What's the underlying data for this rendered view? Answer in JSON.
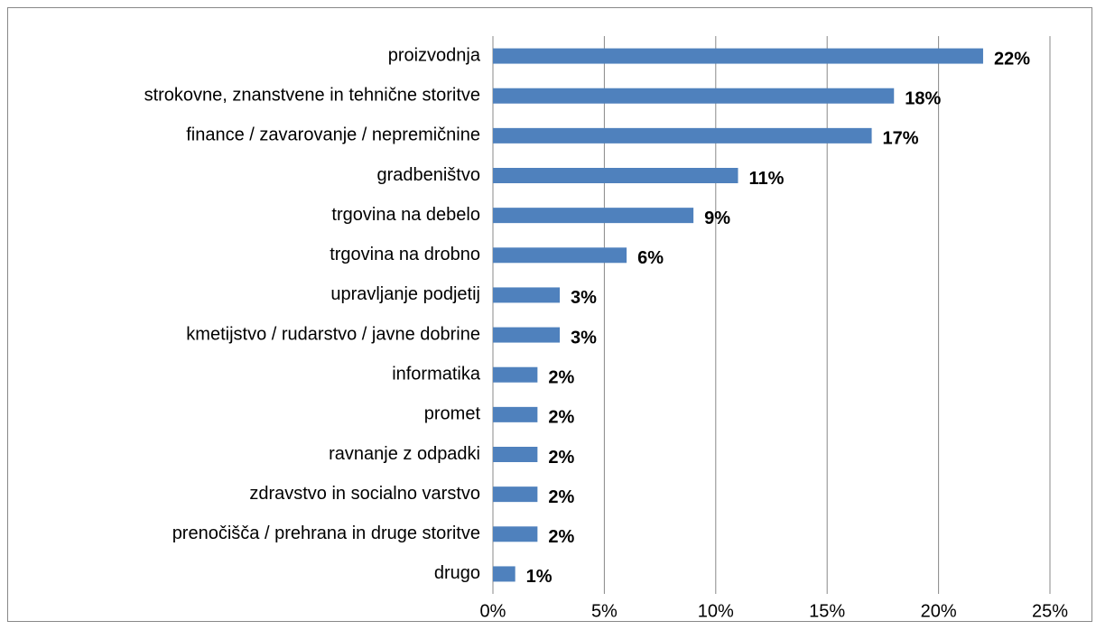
{
  "chart_data": {
    "type": "bar",
    "orientation": "horizontal",
    "categories": [
      "proizvodnja",
      "strokovne, znanstvene in tehnične storitve",
      "finance / zavarovanje / nepremičnine",
      "gradbeništvo",
      "trgovina na debelo",
      "trgovina na drobno",
      "upravljanje podjetij ",
      "kmetijstvo / rudarstvo / javne dobrine",
      "informatika",
      "promet",
      "ravnanje z odpadki",
      "zdravstvo in socialno varstvo ",
      "prenočišča / prehrana in druge storitve",
      "drugo"
    ],
    "values": [
      22,
      18,
      17,
      11,
      9,
      6,
      3,
      3,
      2,
      2,
      2,
      2,
      2,
      1
    ],
    "value_labels": [
      "22%",
      "18%",
      "17%",
      "11%",
      "9%",
      "6%",
      "3%",
      "3%",
      "2%",
      "2%",
      "2%",
      "2%",
      "2%",
      "1%"
    ],
    "color": "#4f81bd",
    "xlim": [
      0,
      25
    ],
    "xticks": [
      {
        "value": 0,
        "label": "0%"
      },
      {
        "value": 5,
        "label": "5%"
      },
      {
        "value": 10,
        "label": "10%"
      },
      {
        "value": 15,
        "label": "15%"
      },
      {
        "value": 20,
        "label": "20%"
      },
      {
        "value": 25,
        "label": "25%"
      }
    ],
    "grid": true
  }
}
